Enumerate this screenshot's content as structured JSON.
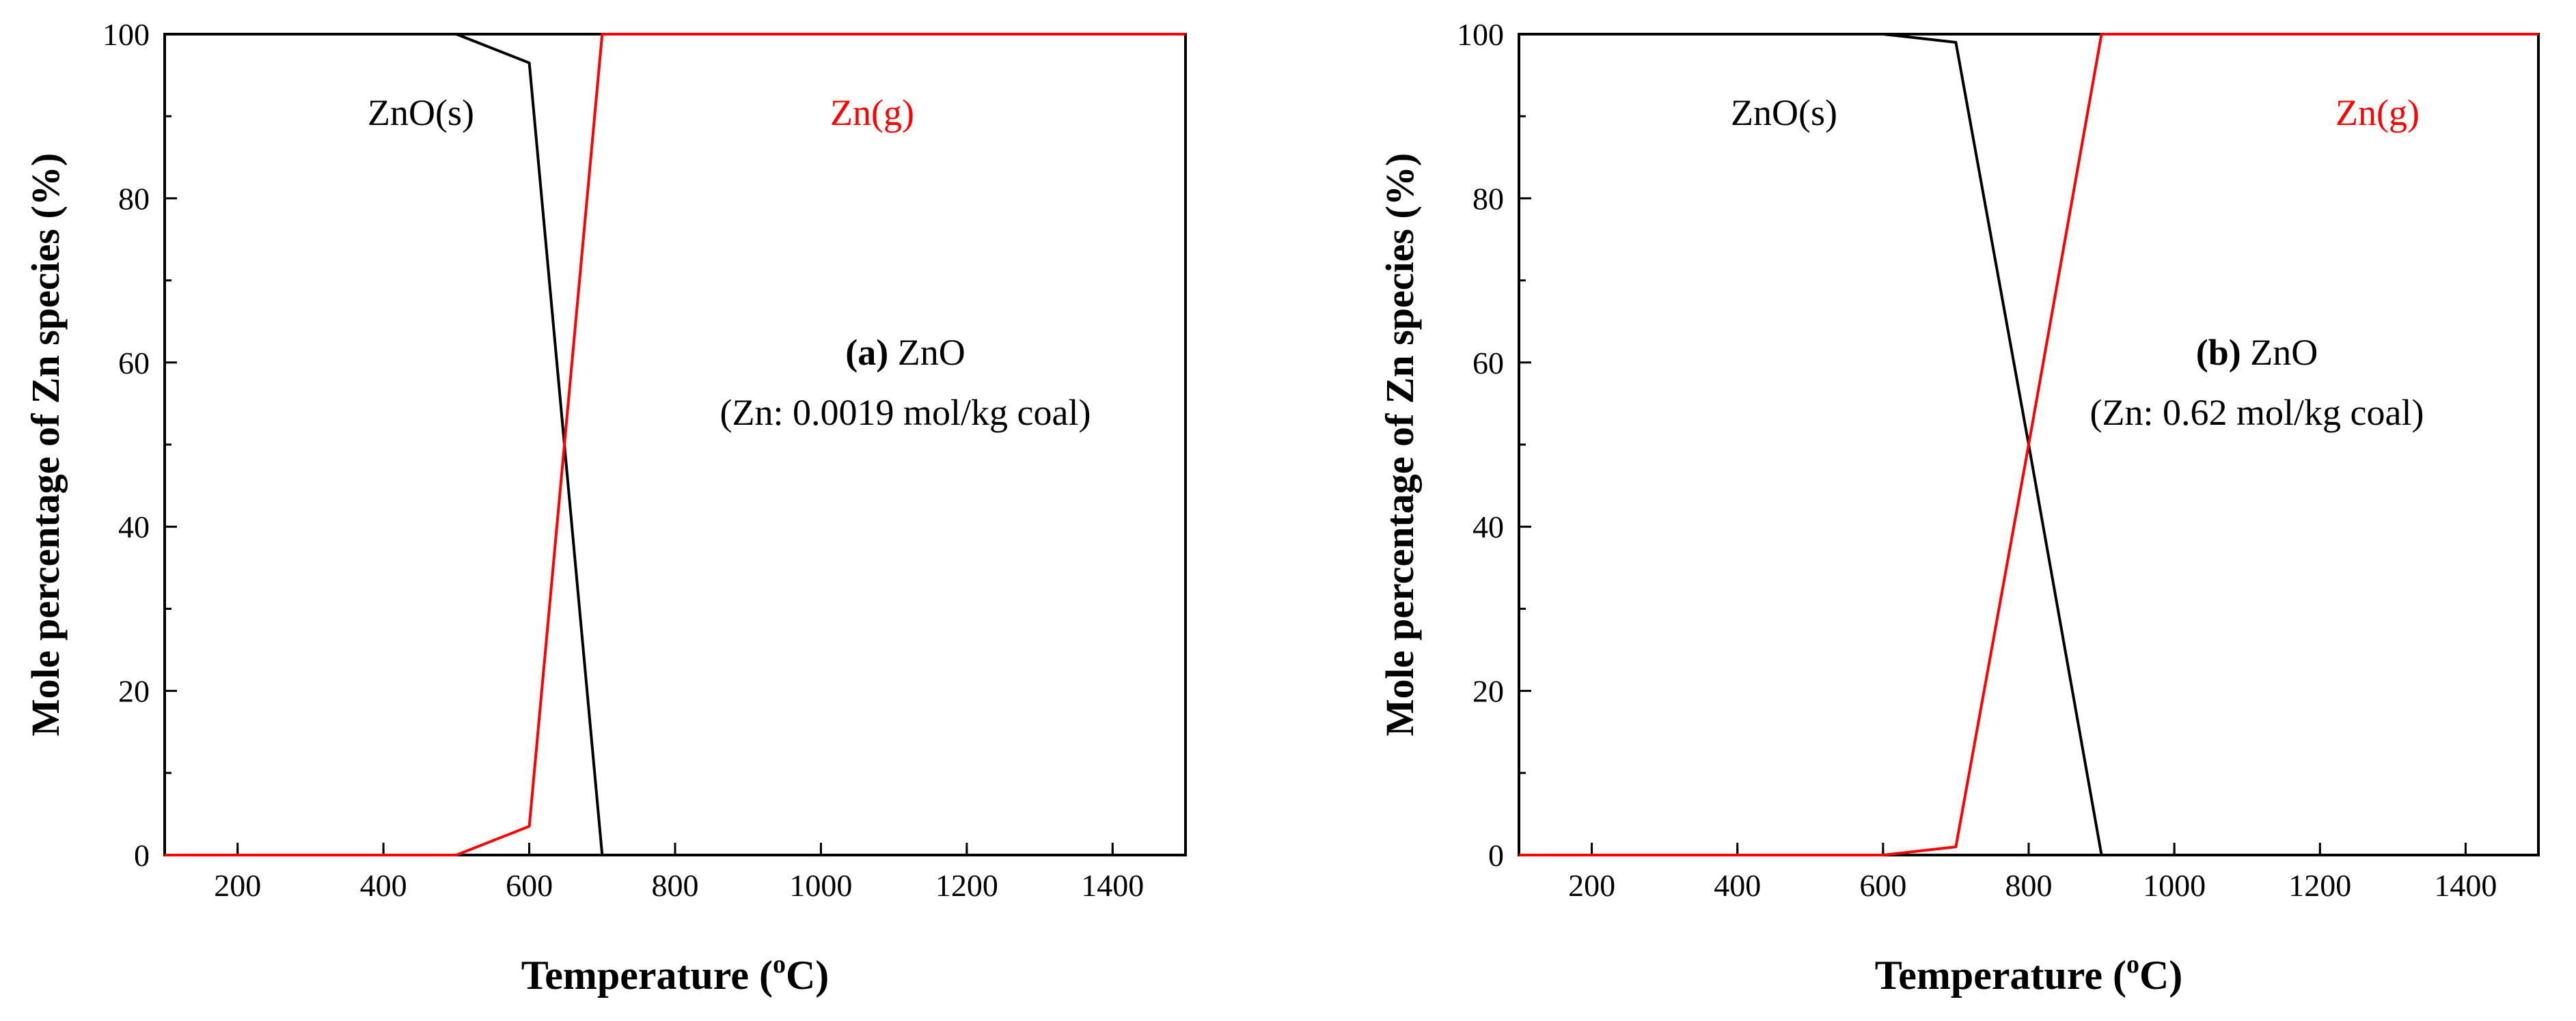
{
  "chart_data": [
    {
      "type": "line",
      "panel_label": "(a)",
      "annotation_species": "ZnO",
      "annotation_conc": "(Zn: 0.0019 mol/kg coal)",
      "xlabel": "Temperature (",
      "xlabel_sup": "o",
      "xlabel_end": "C)",
      "ylabel": "Mole percentage of Zn species (%)",
      "xlim": [
        100,
        1500
      ],
      "ylim": [
        0,
        100
      ],
      "xticks": [
        200,
        400,
        600,
        800,
        1000,
        1200,
        1400
      ],
      "yticks": [
        0,
        20,
        40,
        60,
        80,
        100
      ],
      "series": [
        {
          "name": "ZnO(s)",
          "color": "#000000",
          "x": [
            100,
            500,
            600,
            700,
            800,
            900,
            1000,
            1100,
            1200,
            1300,
            1400,
            1500
          ],
          "values": [
            100,
            100,
            96.5,
            0,
            0,
            0,
            0,
            0,
            0,
            0,
            0,
            0
          ]
        },
        {
          "name": "Zn(g)",
          "color": "#ff0000",
          "x": [
            100,
            500,
            600,
            700,
            800,
            900,
            1000,
            1100,
            1200,
            1300,
            1400,
            1500
          ],
          "values": [
            0,
            0,
            3.5,
            100,
            100,
            100,
            100,
            100,
            100,
            100,
            100,
            100
          ]
        }
      ]
    },
    {
      "type": "line",
      "panel_label": "(b)",
      "annotation_species": "ZnO",
      "annotation_conc": "(Zn: 0.62 mol/kg coal)",
      "xlabel": "Temperature (",
      "xlabel_sup": "o",
      "xlabel_end": "C)",
      "ylabel": "Mole percentage of Zn species (%)",
      "xlim": [
        100,
        1500
      ],
      "ylim": [
        0,
        100
      ],
      "xticks": [
        200,
        400,
        600,
        800,
        1000,
        1200,
        1400
      ],
      "yticks": [
        0,
        20,
        40,
        60,
        80,
        100
      ],
      "series": [
        {
          "name": "ZnO(s)",
          "color": "#000000",
          "x": [
            100,
            600,
            700,
            800,
            900,
            1000,
            1100,
            1200,
            1300,
            1400,
            1500
          ],
          "values": [
            100,
            100,
            99,
            50,
            0,
            0,
            0,
            0,
            0,
            0,
            0
          ]
        },
        {
          "name": "Zn(g)",
          "color": "#ff0000",
          "x": [
            100,
            600,
            700,
            800,
            900,
            1000,
            1100,
            1200,
            1300,
            1400,
            1500
          ],
          "values": [
            0,
            0,
            1,
            50,
            100,
            100,
            100,
            100,
            100,
            100,
            100
          ]
        }
      ]
    }
  ]
}
